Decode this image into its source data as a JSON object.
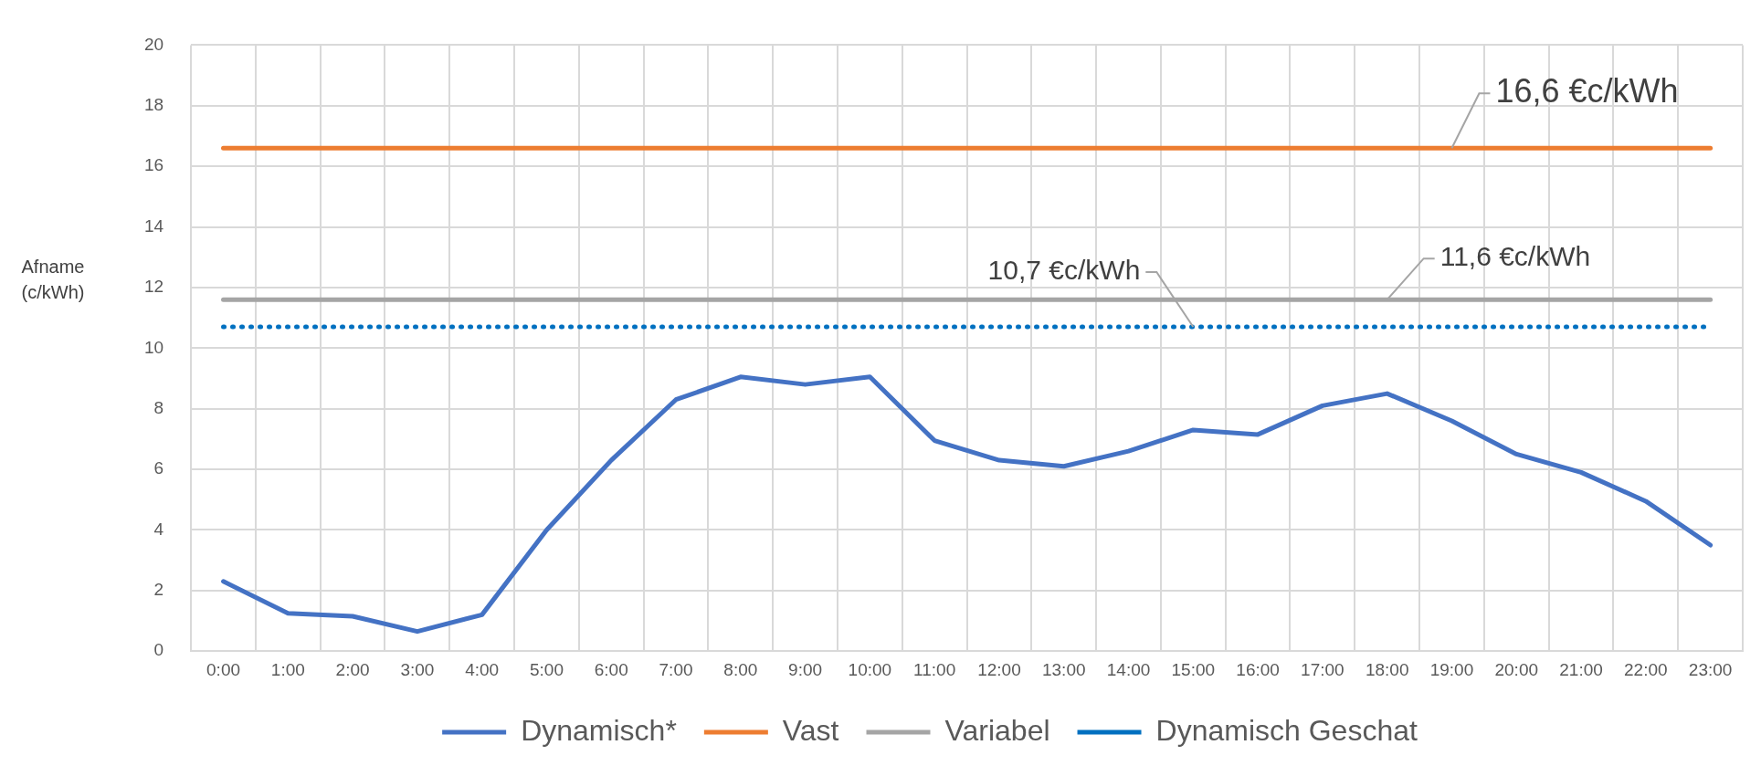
{
  "chart_data": {
    "type": "line",
    "ylabel": "Afname (c/kWh)",
    "categories": [
      "0:00",
      "1:00",
      "2:00",
      "3:00",
      "4:00",
      "5:00",
      "6:00",
      "7:00",
      "8:00",
      "9:00",
      "10:00",
      "11:00",
      "12:00",
      "13:00",
      "14:00",
      "15:00",
      "16:00",
      "17:00",
      "18:00",
      "19:00",
      "20:00",
      "21:00",
      "22:00",
      "23:00"
    ],
    "series": [
      {
        "name": "Dynamisch*",
        "color": "#4472c4",
        "line_style": "solid",
        "values": [
          2.3,
          1.25,
          1.15,
          0.65,
          1.2,
          4.0,
          6.3,
          8.3,
          9.05,
          8.8,
          9.05,
          6.95,
          6.3,
          6.1,
          6.6,
          7.3,
          7.15,
          8.1,
          8.5,
          7.6,
          6.5,
          5.9,
          4.95,
          3.5
        ]
      },
      {
        "name": "Vast",
        "color": "#ed7d31",
        "line_style": "solid",
        "values": [
          16.6,
          16.6,
          16.6,
          16.6,
          16.6,
          16.6,
          16.6,
          16.6,
          16.6,
          16.6,
          16.6,
          16.6,
          16.6,
          16.6,
          16.6,
          16.6,
          16.6,
          16.6,
          16.6,
          16.6,
          16.6,
          16.6,
          16.6,
          16.6
        ]
      },
      {
        "name": "Variabel",
        "color": "#a5a5a5",
        "line_style": "solid",
        "values": [
          11.6,
          11.6,
          11.6,
          11.6,
          11.6,
          11.6,
          11.6,
          11.6,
          11.6,
          11.6,
          11.6,
          11.6,
          11.6,
          11.6,
          11.6,
          11.6,
          11.6,
          11.6,
          11.6,
          11.6,
          11.6,
          11.6,
          11.6,
          11.6
        ]
      },
      {
        "name": "Dynamisch Geschat",
        "color": "#0070c0",
        "line_style": "dotted",
        "values": [
          10.7,
          10.7,
          10.7,
          10.7,
          10.7,
          10.7,
          10.7,
          10.7,
          10.7,
          10.7,
          10.7,
          10.7,
          10.7,
          10.7,
          10.7,
          10.7,
          10.7,
          10.7,
          10.7,
          10.7,
          10.7,
          10.7,
          10.7,
          10.7
        ]
      }
    ],
    "annotations": [
      {
        "text": "16,6 €c/kWh",
        "x": "19:00",
        "y": 16.6
      },
      {
        "text": "10,7 €c/kWh",
        "x": "15:00",
        "y": 10.7
      },
      {
        "text": "11,6 €c/kWh",
        "x": "18:00",
        "y": 11.6
      }
    ],
    "ylim": [
      0,
      20
    ],
    "yticks": [
      0,
      2,
      4,
      6,
      8,
      10,
      12,
      14,
      16,
      18,
      20
    ],
    "grid": true,
    "legend": "bottom",
    "marker": "none"
  }
}
